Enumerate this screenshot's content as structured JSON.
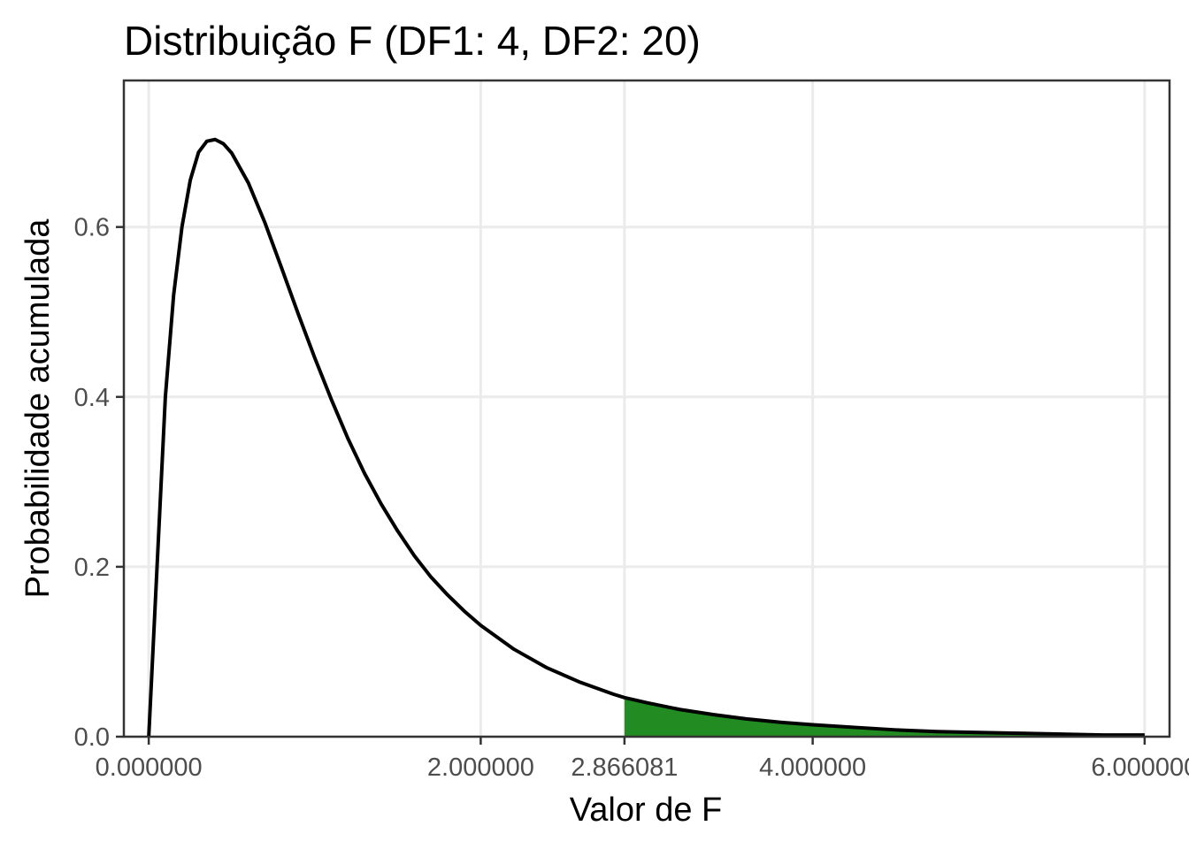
{
  "chart_data": {
    "type": "area",
    "title": "Distribuição F (DF1: 4, DF2: 20)",
    "xlabel": "Valor de F",
    "ylabel": "Probabilidade acumulada",
    "xlim": [
      -0.15,
      6.15
    ],
    "ylim": [
      0,
      0.7725
    ],
    "x_ticks": [
      0,
      2,
      2.866081,
      4,
      6
    ],
    "x_tick_labels": [
      "0.000000",
      "2.000000",
      "2.866081",
      "4.000000",
      "6.000000"
    ],
    "y_ticks": [
      0,
      0.2,
      0.4,
      0.6
    ],
    "y_tick_labels": [
      "0.0",
      "0.2",
      "0.4",
      "0.6"
    ],
    "grid": true,
    "colors": {
      "line": "#000000",
      "shaded_region": "#228b22",
      "grid": "#ebebeb"
    },
    "series": [
      {
        "x": [
          0,
          0.05,
          0.1,
          0.15,
          0.2,
          0.25,
          0.3,
          0.35,
          0.4,
          0.45,
          0.5,
          0.6,
          0.7,
          0.8,
          0.9,
          1.0,
          1.1,
          1.2,
          1.3,
          1.4,
          1.5,
          1.6,
          1.7,
          1.8,
          1.9,
          2.0,
          2.2,
          2.4,
          2.6,
          2.8,
          2.866081,
          3.0,
          3.2,
          3.4,
          3.6,
          3.8,
          4.0,
          4.25,
          4.5,
          4.75,
          5.0,
          5.25,
          5.5,
          5.75,
          6.0
        ],
        "values": [
          0,
          0.2,
          0.4,
          0.52,
          0.6,
          0.655,
          0.688,
          0.701,
          0.703,
          0.698,
          0.687,
          0.652,
          0.605,
          0.552,
          0.498,
          0.446,
          0.397,
          0.351,
          0.31,
          0.274,
          0.242,
          0.213,
          0.188,
          0.167,
          0.148,
          0.131,
          0.103,
          0.081,
          0.064,
          0.05,
          0.046,
          0.04,
          0.032,
          0.026,
          0.021,
          0.017,
          0.014,
          0.011,
          0.008,
          0.006,
          0.005,
          0.004,
          0.003,
          0.002,
          0.002
        ]
      }
    ],
    "shaded_region": {
      "x_from": 2.866081,
      "x_to": 6.0
    }
  }
}
